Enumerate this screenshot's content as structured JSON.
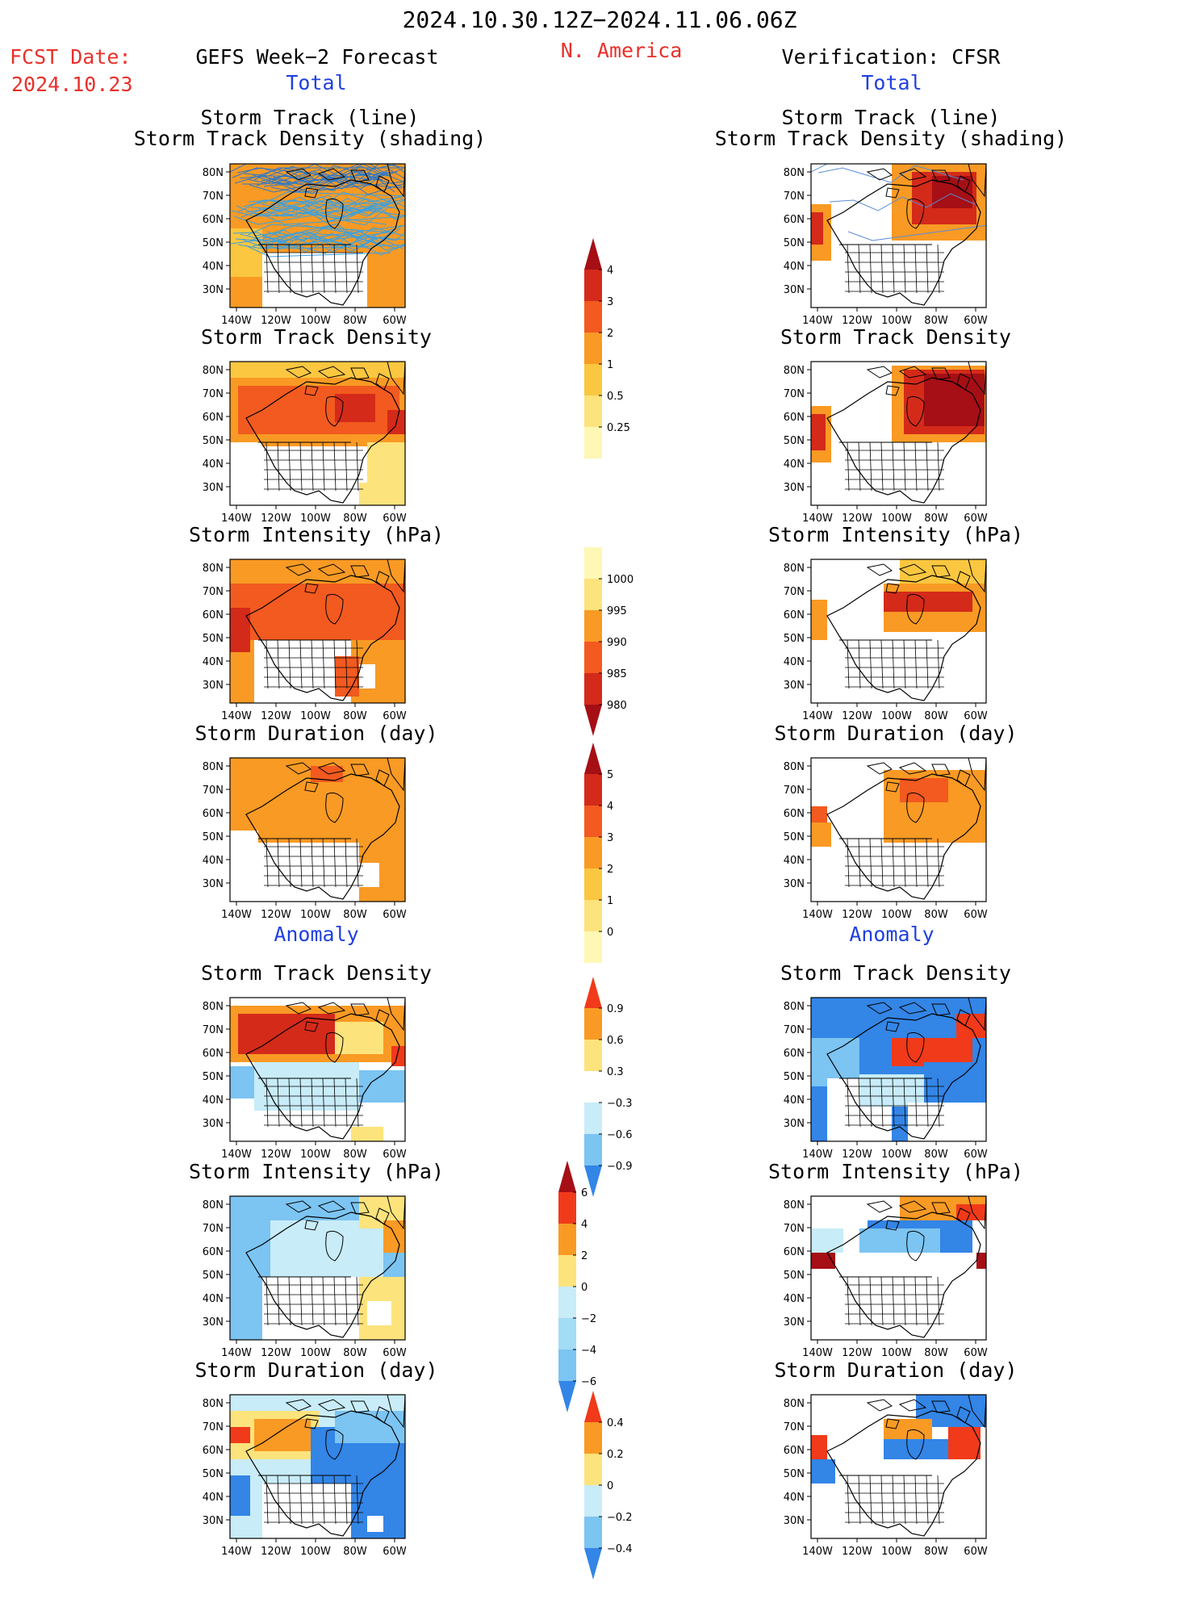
{
  "header": {
    "period": "2024.10.30.12Z−2024.11.06.06Z",
    "region": "N. America",
    "fcst_label": "FCST Date:",
    "fcst_date": "2024.10.23",
    "left_title": "GEFS Week−2 Forecast",
    "right_title": "Verification: CFSR",
    "total_label": "Total",
    "anomaly_label": "Anomaly"
  },
  "panels": {
    "track_line": [
      "Storm Track (line)",
      "Storm Track Density (shading)"
    ],
    "density": "Storm Track Density",
    "intensity": "Storm Intensity (hPa)",
    "duration": "Storm Duration (day)"
  },
  "axes": {
    "lat_ticks": [
      "80N",
      "70N",
      "60N",
      "50N",
      "40N",
      "30N"
    ],
    "lon_ticks": [
      "140W",
      "120W",
      "100W",
      "80W",
      "60W"
    ]
  },
  "colorbars": {
    "density_total": {
      "labels": [
        "4",
        "3",
        "2",
        "1",
        "0.5",
        "0.25"
      ],
      "colors": [
        "#a50f15",
        "#d42a1a",
        "#f25a1f",
        "#f99a24",
        "#fbc740",
        "#fde37c",
        "#fff7b5"
      ]
    },
    "intensity_total": {
      "labels": [
        "1000",
        "995",
        "990",
        "985",
        "980"
      ],
      "colors": [
        "#fff7b5",
        "#fde37c",
        "#f99a24",
        "#f25a1f",
        "#d42a1a",
        "#a50f15"
      ]
    },
    "duration_total": {
      "labels": [
        "5",
        "4",
        "3",
        "2",
        "1",
        "0"
      ],
      "colors": [
        "#a50f15",
        "#d42a1a",
        "#f25a1f",
        "#f99a24",
        "#fbc740",
        "#fde37c",
        "#fff7b5"
      ]
    },
    "density_anom": {
      "labels": [
        "0.9",
        "0.6",
        "0.3",
        "−0.3",
        "−0.6",
        "−0.9"
      ],
      "colors": [
        "#f03a1a",
        "#f99a24",
        "#fde37c",
        "#ffffff",
        "#c8ecf8",
        "#7cc4f2",
        "#3385e6"
      ]
    },
    "intensity_anom": {
      "labels": [
        "6",
        "4",
        "2",
        "0",
        "−2",
        "−4",
        "−6"
      ],
      "colors": [
        "#a50f15",
        "#f03a1a",
        "#f99a24",
        "#fde37c",
        "#c8ecf8",
        "#a3dcf5",
        "#7cc4f2",
        "#3385e6"
      ]
    },
    "duration_anom": {
      "labels": [
        "0.4",
        "0.2",
        "0",
        "−0.2",
        "−0.4"
      ],
      "colors": [
        "#f03a1a",
        "#f99a24",
        "#fde37c",
        "#c8ecf8",
        "#7cc4f2",
        "#3385e6"
      ]
    }
  }
}
